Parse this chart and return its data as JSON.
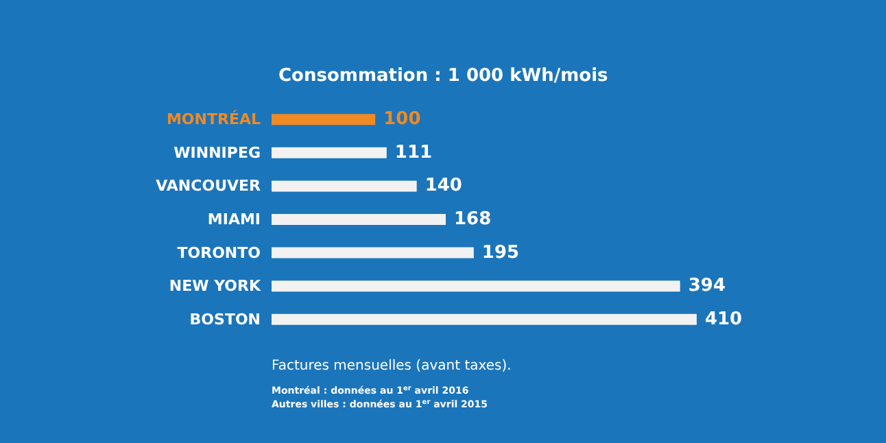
{
  "chart_data": {
    "type": "bar",
    "orientation": "horizontal",
    "title": "Consommation : 1 000 kWh/mois",
    "categories": [
      "MONTRÉAL",
      "WINNIPEG",
      "VANCOUVER",
      "MIAMI",
      "TORONTO",
      "NEW YORK",
      "BOSTON"
    ],
    "values": [
      100,
      111,
      140,
      168,
      195,
      394,
      410
    ],
    "colors": [
      "#f08a24",
      "#f2f2f2",
      "#f2f2f2",
      "#f2f2f2",
      "#f2f2f2",
      "#f2f2f2",
      "#f2f2f2"
    ],
    "data_labels": true,
    "annotations": [
      "Factures mensuelles (avant taxes).",
      "Montréal : données au 1$^{er}$ avril 2016",
      "Autres villes : données au 1$^{er}$ avril 2015"
    ]
  }
}
